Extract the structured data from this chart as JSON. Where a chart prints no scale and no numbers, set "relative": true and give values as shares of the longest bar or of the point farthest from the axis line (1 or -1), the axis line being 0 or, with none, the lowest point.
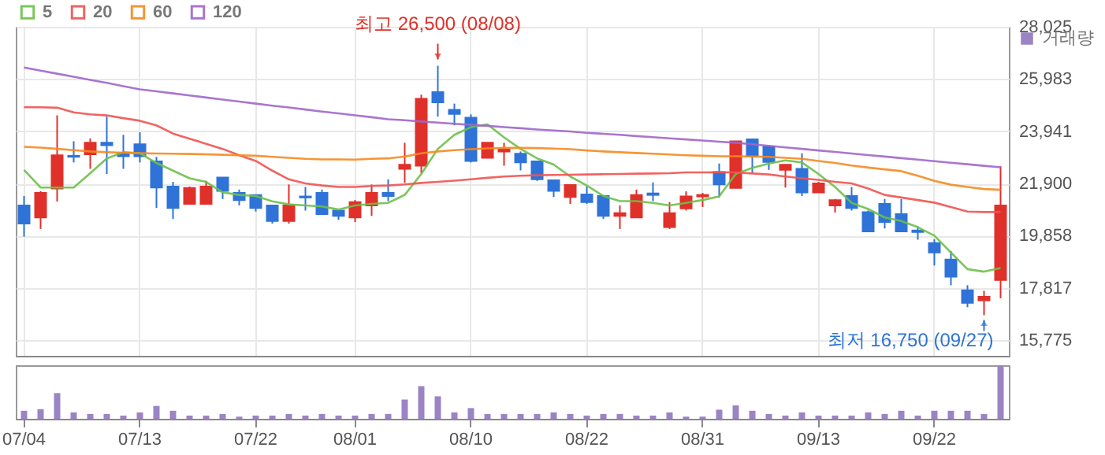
{
  "chart_data": [
    {
      "type": "candlestick",
      "categories": [
        null,
        null,
        null,
        null,
        null,
        null,
        null,
        null,
        null,
        null,
        null,
        null,
        null,
        null,
        null,
        null,
        null,
        null,
        null,
        null,
        null,
        null,
        null,
        null,
        null,
        null,
        null,
        null,
        null,
        null,
        null,
        null,
        null,
        null,
        null,
        null,
        null,
        null,
        null,
        null,
        null,
        null,
        null,
        null,
        null,
        null,
        null,
        null,
        null,
        null,
        null,
        null,
        null,
        null,
        null,
        null,
        null,
        null,
        null,
        null
      ],
      "ohlc": [
        [
          21040,
          21410,
          19820,
          20330
        ],
        [
          20570,
          21600,
          20120,
          21530
        ],
        [
          21700,
          24560,
          21190,
          23000
        ],
        [
          22980,
          23550,
          22720,
          22940
        ],
        [
          23040,
          23660,
          22470,
          23490
        ],
        [
          23490,
          24510,
          22270,
          23390
        ],
        [
          23080,
          23800,
          22470,
          22960
        ],
        [
          23430,
          23900,
          22720,
          22960
        ],
        [
          22760,
          22940,
          20940,
          21740
        ],
        [
          21780,
          21960,
          20510,
          20940
        ],
        [
          21100,
          21780,
          21100,
          21720
        ],
        [
          21100,
          22000,
          21100,
          21780
        ],
        [
          22130,
          22130,
          21290,
          21610
        ],
        [
          21530,
          21660,
          21040,
          21250
        ],
        [
          21450,
          21450,
          20800,
          20940
        ],
        [
          21040,
          21040,
          20330,
          20430
        ],
        [
          20430,
          21860,
          20330,
          21040
        ],
        [
          21390,
          21760,
          20840,
          21350
        ],
        [
          21530,
          21660,
          20700,
          20700
        ],
        [
          20840,
          20840,
          20470,
          20630
        ],
        [
          20570,
          21250,
          20390,
          21170
        ],
        [
          21040,
          21860,
          20630,
          21530
        ],
        [
          21530,
          22060,
          21210,
          21410
        ],
        [
          22470,
          23490,
          21920,
          22630
        ],
        [
          22590,
          25370,
          22310,
          25210
        ],
        [
          25470,
          26500,
          24510,
          25070
        ],
        [
          24780,
          25020,
          24170,
          24620
        ],
        [
          24470,
          24600,
          22720,
          22780
        ],
        [
          22900,
          23490,
          22900,
          23490
        ],
        [
          23150,
          23490,
          22590,
          23230
        ],
        [
          23060,
          23150,
          22410,
          22720
        ],
        [
          22760,
          22760,
          22000,
          22060
        ],
        [
          22020,
          22020,
          21370,
          21610
        ],
        [
          21370,
          21840,
          21100,
          21840
        ],
        [
          21470,
          21780,
          21100,
          21170
        ],
        [
          21410,
          21410,
          20510,
          20630
        ],
        [
          20630,
          21040,
          20120,
          20740
        ],
        [
          20570,
          21660,
          20570,
          21450
        ],
        [
          21510,
          21940,
          21210,
          21450
        ],
        [
          20190,
          21170,
          20120,
          20740
        ],
        [
          20920,
          21590,
          20840,
          21390
        ],
        [
          21390,
          21530,
          20980,
          21450
        ],
        [
          22350,
          22680,
          21350,
          21860
        ],
        [
          21720,
          23550,
          21720,
          23550
        ],
        [
          23620,
          23660,
          22310,
          22960
        ],
        [
          23350,
          23390,
          22430,
          22740
        ],
        [
          22430,
          22630,
          21740,
          22630
        ],
        [
          22470,
          23080,
          21410,
          21550
        ],
        [
          21550,
          21960,
          21550,
          21900
        ],
        [
          21040,
          21290,
          20760,
          21250
        ],
        [
          21410,
          21760,
          20840,
          20940
        ],
        [
          20780,
          20840,
          20020,
          20020
        ],
        [
          21100,
          21290,
          20140,
          20390
        ],
        [
          20700,
          21290,
          20020,
          20020
        ],
        [
          20060,
          20230,
          19700,
          20000
        ],
        [
          19570,
          19720,
          18690,
          19200
        ],
        [
          18920,
          19250,
          17920,
          18250
        ],
        [
          17720,
          17920,
          17060,
          17230
        ],
        [
          17330,
          17700,
          16750,
          17470
        ],
        [
          18120,
          22570,
          17410,
          21040
        ]
      ],
      "series": [
        {
          "name": "5",
          "type": "line",
          "color": "#6cc04a",
          "values": [
            22430,
            21740,
            21740,
            21740,
            22300,
            22880,
            23120,
            23080,
            22700,
            22400,
            22100,
            21960,
            21550,
            21450,
            21410,
            21200,
            21080,
            21040,
            21000,
            20880,
            21040,
            21100,
            21140,
            21450,
            22270,
            23250,
            23800,
            24100,
            24210,
            23700,
            23250,
            22880,
            22640,
            22170,
            21820,
            21410,
            21210,
            21210,
            21140,
            21040,
            21140,
            21250,
            21390,
            22270,
            22510,
            22680,
            22800,
            22720,
            22270,
            21760,
            21140,
            20900,
            20570,
            20430,
            20190,
            19860,
            19200,
            18550,
            18450,
            18590
          ]
        },
        {
          "name": "20",
          "type": "line",
          "color": "#ef5350",
          "values": [
            24880,
            24880,
            24860,
            24680,
            24600,
            24560,
            24450,
            24350,
            24170,
            23850,
            23650,
            23450,
            23250,
            23000,
            22780,
            22400,
            22060,
            21900,
            21820,
            21760,
            21760,
            21800,
            21820,
            21860,
            21920,
            21960,
            22010,
            22060,
            22120,
            22170,
            22200,
            22220,
            22230,
            22240,
            22250,
            22260,
            22270,
            22280,
            22290,
            22300,
            22330,
            22330,
            22340,
            22330,
            22290,
            22250,
            22170,
            22100,
            22040,
            21960,
            21900,
            21700,
            21450,
            21350,
            21250,
            21150,
            20980,
            20800,
            20780,
            20780
          ]
        },
        {
          "name": "60",
          "type": "line",
          "color": "#f5891f",
          "values": [
            23330,
            23300,
            23250,
            23200,
            23150,
            23120,
            23100,
            23080,
            23070,
            23060,
            23050,
            23040,
            23020,
            23000,
            22980,
            22940,
            22900,
            22860,
            22840,
            22840,
            22830,
            22860,
            22880,
            22950,
            23080,
            23150,
            23200,
            23240,
            23270,
            23290,
            23290,
            23280,
            23260,
            23240,
            23190,
            23150,
            23120,
            23090,
            23060,
            23030,
            23000,
            22980,
            22960,
            22960,
            22950,
            22940,
            22900,
            22860,
            22780,
            22700,
            22600,
            22520,
            22450,
            22380,
            22200,
            22000,
            21850,
            21760,
            21680,
            21650
          ]
        },
        {
          "name": "120",
          "type": "line",
          "color": "#a066cc",
          "values": [
            26430,
            26310,
            26190,
            26070,
            25950,
            25830,
            25700,
            25580,
            25500,
            25420,
            25340,
            25260,
            25180,
            25100,
            25020,
            24940,
            24870,
            24790,
            24710,
            24640,
            24560,
            24490,
            24410,
            24370,
            24320,
            24280,
            24230,
            24190,
            24150,
            24100,
            24060,
            24010,
            23970,
            23930,
            23880,
            23840,
            23800,
            23750,
            23710,
            23660,
            23620,
            23580,
            23530,
            23490,
            23430,
            23370,
            23310,
            23250,
            23190,
            23130,
            23070,
            23010,
            22950,
            22890,
            22830,
            22770,
            22710,
            22650,
            22590,
            22530
          ]
        }
      ],
      "ylim": [
        15160,
        28025
      ],
      "yticks": [
        {
          "value": 15775,
          "label": "15,775"
        },
        {
          "value": 17817,
          "label": "17,817"
        },
        {
          "value": 19858,
          "label": "19,858"
        },
        {
          "value": 21900,
          "label": "21,900"
        },
        {
          "value": 23941,
          "label": "23,941"
        },
        {
          "value": 25983,
          "label": "25,983"
        },
        {
          "value": 28025,
          "label": "28,025"
        }
      ],
      "grid": true,
      "legend": "top left",
      "tick_labels": "y",
      "annotations": [
        {
          "text": "최고 26,500 (08/08)",
          "y": 26500
        },
        "최저 16,750 (09/27)"
      ]
    },
    {
      "type": "bar",
      "relative": true,
      "categories": [
        "07/04",
        null,
        null,
        null,
        null,
        null,
        null,
        "07/13",
        null,
        null,
        null,
        null,
        null,
        null,
        "07/22",
        null,
        null,
        null,
        null,
        null,
        "08/01",
        null,
        null,
        null,
        null,
        null,
        null,
        "08/10",
        null,
        null,
        null,
        null,
        null,
        null,
        "08/22",
        null,
        null,
        null,
        null,
        null,
        null,
        "08/31",
        null,
        null,
        null,
        null,
        null,
        null,
        "09/13",
        null,
        null,
        null,
        null,
        null,
        null,
        "09/22",
        null,
        null,
        null,
        null
      ],
      "series": [
        {
          "name": "거래량",
          "color": "#9b84c4",
          "values": [
            0.15,
            0.18,
            0.48,
            0.12,
            0.09,
            0.09,
            0.06,
            0.12,
            0.24,
            0.15,
            0.06,
            0.06,
            0.09,
            0.04,
            0.06,
            0.06,
            0.09,
            0.06,
            0.09,
            0.06,
            0.06,
            0.09,
            0.09,
            0.36,
            0.61,
            0.42,
            0.12,
            0.2,
            0.09,
            0.09,
            0.09,
            0.09,
            0.12,
            0.09,
            0.06,
            0.09,
            0.09,
            0.06,
            0.06,
            0.12,
            0.04,
            0.04,
            0.17,
            0.25,
            0.15,
            0.09,
            0.06,
            0.12,
            0.06,
            0.06,
            0.06,
            0.12,
            0.09,
            0.15,
            0.06,
            0.15,
            0.15,
            0.15,
            0.09,
            1
          ]
        }
      ],
      "legend": "top right",
      "tick_labels": "x"
    }
  ]
}
